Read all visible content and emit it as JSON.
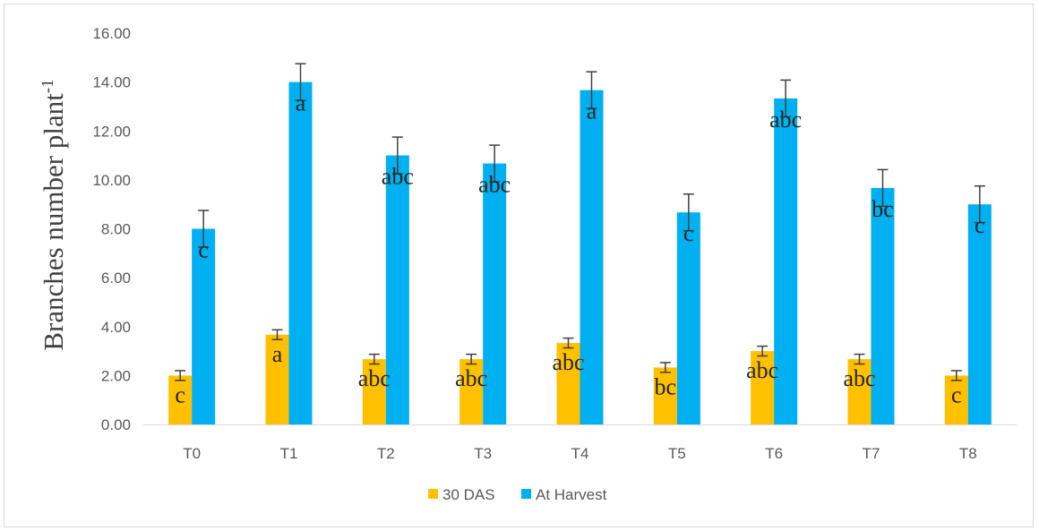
{
  "chart_data": {
    "type": "bar",
    "ylabel": "Branches number plant",
    "ylabel_superscript": "-1",
    "ylim": [
      0,
      16
    ],
    "ytick_labels": [
      "0.00",
      "2.00",
      "4.00",
      "6.00",
      "8.00",
      "10.00",
      "12.00",
      "14.00",
      "16.00"
    ],
    "categories": [
      "T0",
      "T1",
      "T2",
      "T3",
      "T4",
      "T5",
      "T6",
      "T7",
      "T8"
    ],
    "grid": false,
    "legend_position": "bottom",
    "series": [
      {
        "name": "30 DAS",
        "color": "#FFC000",
        "values": [
          2.0,
          3.67,
          2.67,
          2.67,
          3.33,
          2.33,
          3.0,
          2.67,
          2.0
        ],
        "error": [
          0.2,
          0.2,
          0.2,
          0.2,
          0.2,
          0.2,
          0.2,
          0.2,
          0.2
        ],
        "labels": [
          "c",
          "a",
          "abc",
          "abc",
          "abc",
          "bc",
          "abc",
          "abc",
          "c"
        ]
      },
      {
        "name": "At Harvest",
        "color": "#00B0F0",
        "values": [
          8.0,
          14.0,
          11.0,
          10.67,
          13.67,
          8.67,
          13.33,
          9.67,
          9.0
        ],
        "error": [
          0.75,
          0.75,
          0.75,
          0.75,
          0.75,
          0.75,
          0.75,
          0.75,
          0.75
        ],
        "labels": [
          "c",
          "a",
          "abc",
          "abc",
          "a",
          "c",
          "abc",
          "bc",
          "c"
        ]
      }
    ]
  }
}
